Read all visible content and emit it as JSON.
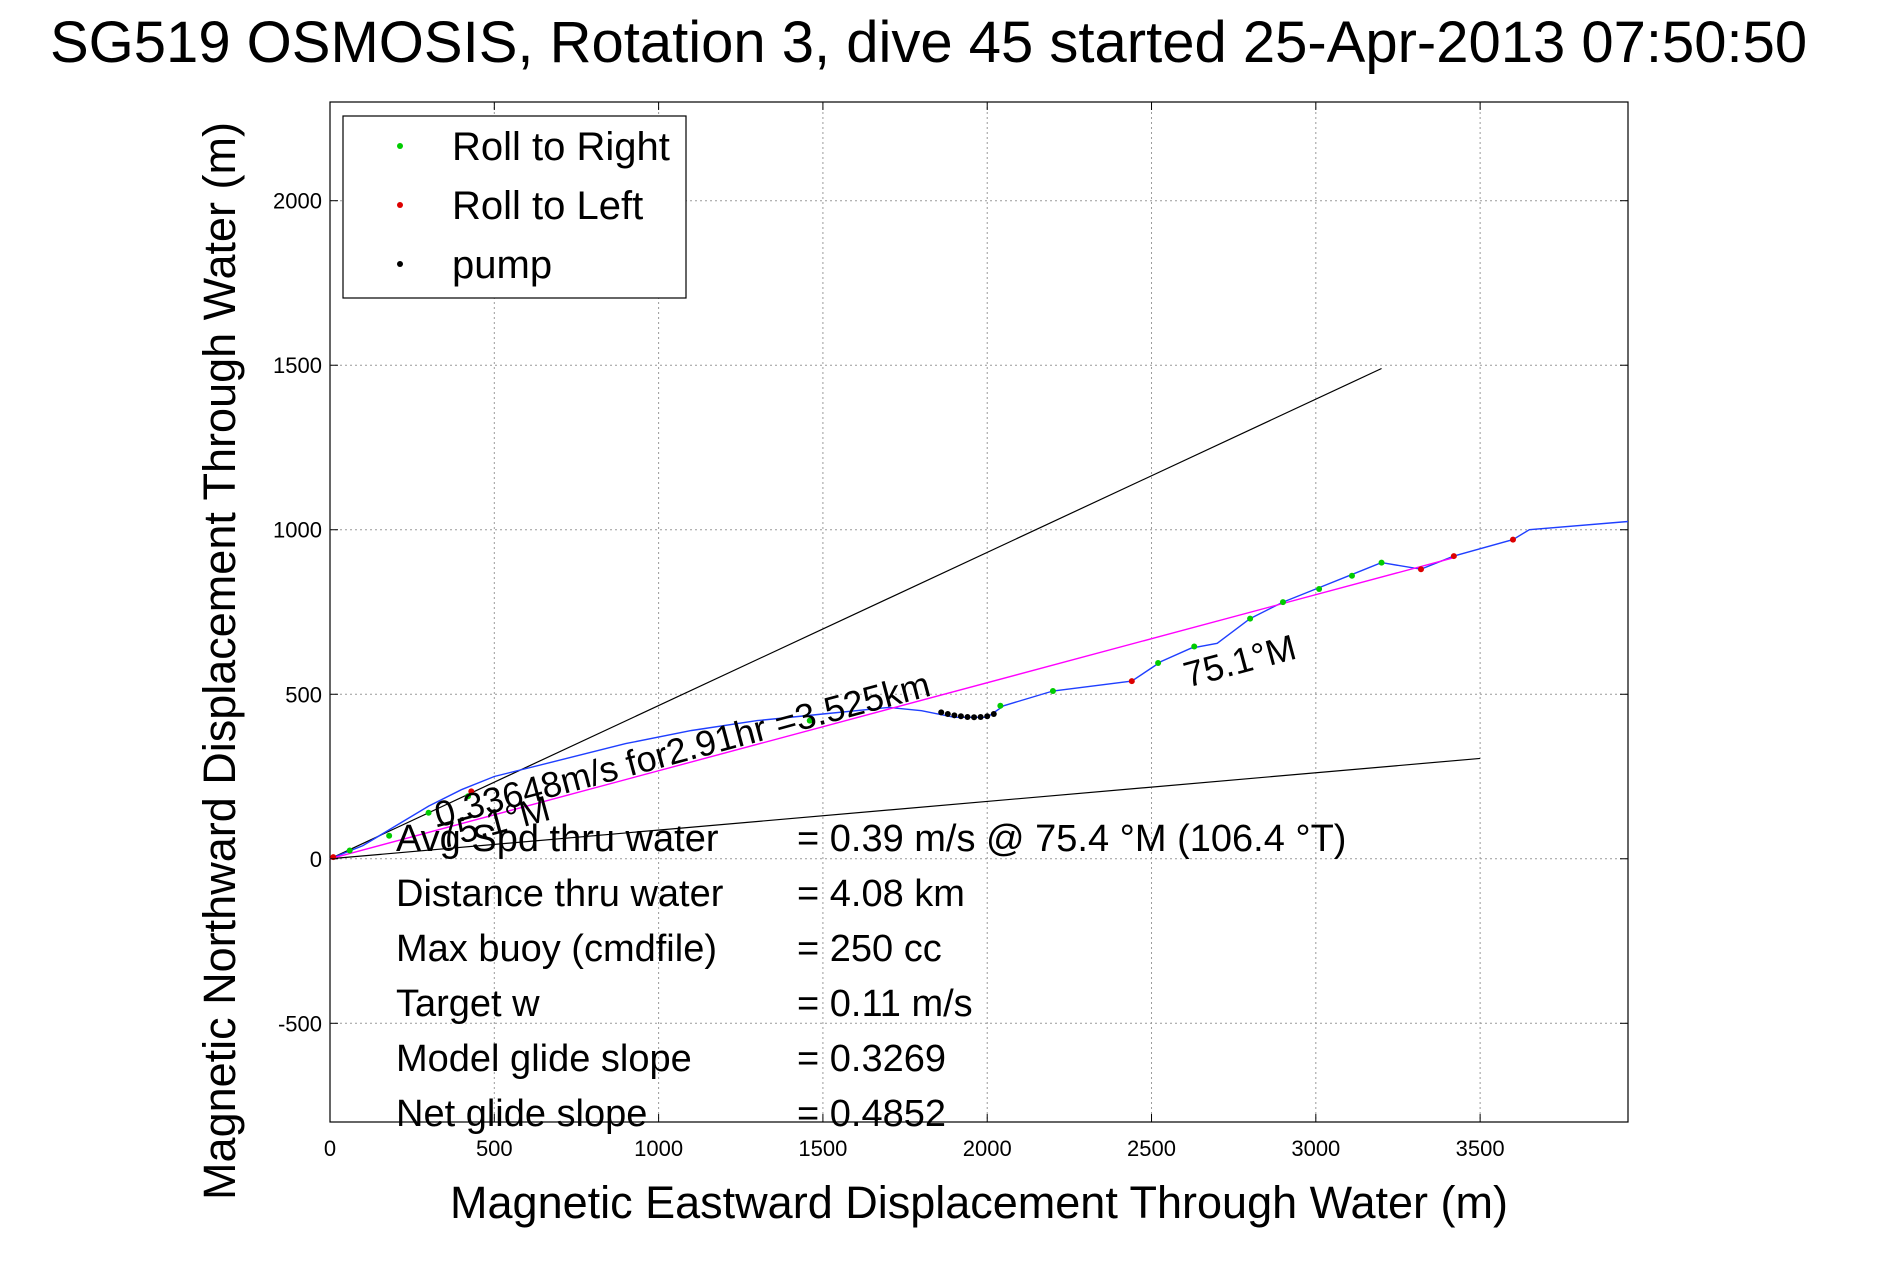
{
  "chart_data": {
    "type": "line",
    "title": "SG519 OSMOSIS, Rotation 3, dive 45 started 25-Apr-2013 07:50:50",
    "xlabel": "Magnetic Eastward Displacement Through Water (m)",
    "ylabel": "Magnetic Northward Displacement Through Water (m)",
    "xlim": [
      0,
      3950
    ],
    "ylim": [
      -800,
      2300
    ],
    "xticks": [
      0,
      500,
      1000,
      1500,
      2000,
      2500,
      3000,
      3500
    ],
    "yticks": [
      -500,
      0,
      500,
      1000,
      1500,
      2000
    ],
    "grid": true,
    "legend_position": "top-left",
    "legend": [
      {
        "label": "Roll to Right",
        "color": "#00cc00"
      },
      {
        "label": "Roll to Left",
        "color": "#dd0000"
      },
      {
        "label": "pump",
        "color": "#000000"
      }
    ],
    "series": [
      {
        "color": "#1f3fff",
        "x": [
          0,
          100,
          200,
          300,
          400,
          500,
          700,
          900,
          1100,
          1300,
          1500,
          1700,
          1800,
          1900,
          2000,
          2050,
          2200,
          2440,
          2530,
          2620,
          2700,
          2800,
          2900,
          3000,
          3100,
          3200,
          3320,
          3420,
          3600,
          3650,
          3950
        ],
        "y": [
          0,
          40,
          100,
          160,
          210,
          250,
          300,
          350,
          390,
          420,
          440,
          460,
          450,
          430,
          430,
          465,
          510,
          540,
          600,
          640,
          655,
          730,
          780,
          820,
          860,
          900,
          880,
          920,
          970,
          1000,
          1025
        ]
      },
      {
        "color": "#ff00ff",
        "x": [
          0,
          3420
        ],
        "y": [
          0,
          915
        ]
      }
    ],
    "reference_lines": [
      {
        "color": "#000000",
        "x": [
          0,
          3200
        ],
        "y": [
          0,
          1490
        ]
      },
      {
        "color": "#000000",
        "x": [
          0,
          3500
        ],
        "y": [
          0,
          305
        ]
      }
    ],
    "markers": {
      "roll_right": {
        "color": "#00cc00",
        "x": [
          60,
          180,
          300,
          420,
          1460,
          2040,
          2200,
          2520,
          2630,
          2800,
          2900,
          3010,
          3110,
          3200
        ],
        "y": [
          25,
          70,
          140,
          190,
          420,
          465,
          510,
          595,
          645,
          730,
          780,
          820,
          860,
          900
        ]
      },
      "roll_left": {
        "color": "#dd0000",
        "x": [
          10,
          430,
          2440,
          3320,
          3420,
          3600
        ],
        "y": [
          5,
          205,
          540,
          880,
          920,
          970
        ]
      },
      "pump": {
        "color": "#000000",
        "x": [
          1860,
          1880,
          1900,
          1920,
          1940,
          1960,
          1980,
          2000,
          2020
        ],
        "y": [
          445,
          440,
          436,
          433,
          431,
          430,
          431,
          433,
          440
        ]
      }
    },
    "annotations": [
      {
        "text": "0.33648m/s for2.91hr =3.525km",
        "x": 330,
        "y": 95,
        "angle": -15
      },
      {
        "text": "75.1°M",
        "x": 2610,
        "y": 520,
        "angle": -15
      },
      {
        "text": "75.1°M",
        "x": 340,
        "y": 30,
        "angle": -15
      }
    ],
    "stats": [
      {
        "label": "Avg Spd thru water",
        "value": "=  0.39 m/s @  75.4 °M (106.4 °T)"
      },
      {
        "label": "Distance thru water",
        "value": "=  4.08 km"
      },
      {
        "label": "Max buoy (cmdfile)",
        "value": "= 250 cc"
      },
      {
        "label": "Target w",
        "value": "= 0.11 m/s"
      },
      {
        "label": "Model glide slope",
        "value": "= 0.3269"
      },
      {
        "label": "Net glide slope",
        "value": "= 0.4852"
      }
    ]
  }
}
